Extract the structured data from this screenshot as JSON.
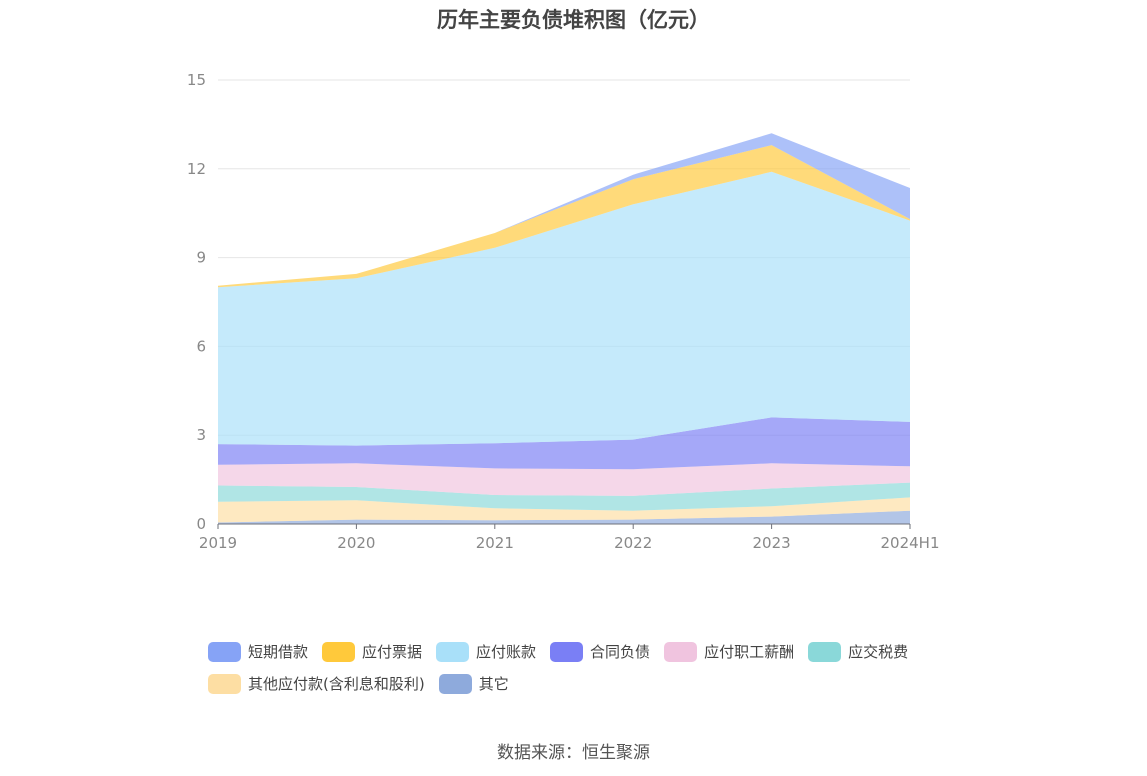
{
  "source_label": "数据来源：恒生聚源",
  "chart_data": {
    "type": "area",
    "stacked": true,
    "title": "历年主要负债堆积图（亿元）",
    "xlabel": "",
    "ylabel": "",
    "categories": [
      "2019",
      "2020",
      "2021",
      "2022",
      "2023",
      "2024H1"
    ],
    "ylim": [
      0,
      15
    ],
    "yticks": [
      0,
      3,
      6,
      9,
      12,
      15
    ],
    "grid": true,
    "legend_position": "bottom",
    "series": [
      {
        "name": "其它",
        "color": "#8eaadc",
        "values": [
          0.05,
          0.15,
          0.13,
          0.15,
          0.25,
          0.45
        ]
      },
      {
        "name": "其他应付款(含利息和股利)",
        "color": "#fddea3",
        "values": [
          0.7,
          0.65,
          0.4,
          0.3,
          0.35,
          0.45
        ]
      },
      {
        "name": "应交税费",
        "color": "#8ad8d9",
        "values": [
          0.55,
          0.45,
          0.45,
          0.5,
          0.6,
          0.5
        ]
      },
      {
        "name": "应付职工薪酬",
        "color": "#f0c4df",
        "values": [
          0.7,
          0.8,
          0.9,
          0.9,
          0.85,
          0.55
        ]
      },
      {
        "name": "合同负债",
        "color": "#7a7ff5",
        "values": [
          0.7,
          0.6,
          0.85,
          1.0,
          1.55,
          1.5
        ]
      },
      {
        "name": "应付账款",
        "color": "#a9e0f9",
        "values": [
          5.3,
          5.65,
          6.6,
          7.95,
          8.3,
          6.8
        ]
      },
      {
        "name": "应付票据",
        "color": "#ffc93b",
        "values": [
          0.05,
          0.15,
          0.5,
          0.85,
          0.9,
          0.05
        ]
      },
      {
        "name": "短期借款",
        "color": "#86a3f6",
        "values": [
          0.0,
          0.0,
          0.0,
          0.15,
          0.4,
          1.05
        ]
      }
    ],
    "legend_order": [
      "短期借款",
      "应付票据",
      "应付账款",
      "合同负债",
      "应付职工薪酬",
      "应交税费",
      "其他应付款(含利息和股利)",
      "其它"
    ]
  }
}
